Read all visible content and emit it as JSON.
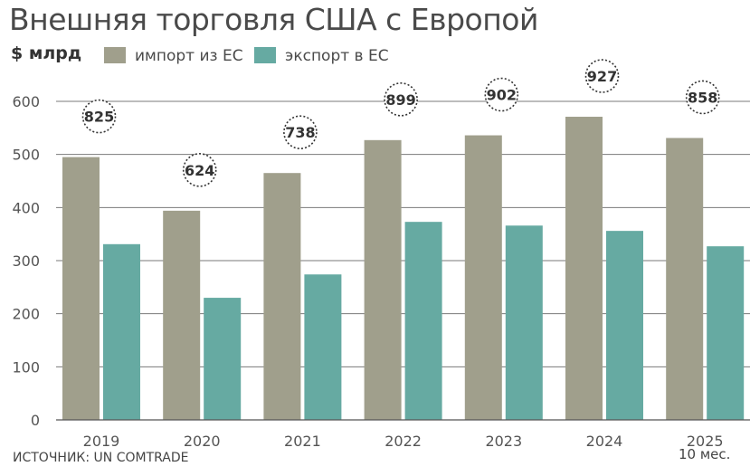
{
  "chart_data": {
    "type": "bar",
    "title": "Внешняя торговля США с Европой",
    "ylabel": "$ млрд",
    "ylim": [
      0,
      600
    ],
    "yticks": [
      "0",
      "100",
      "200",
      "300",
      "400",
      "500",
      "600"
    ],
    "grid": true,
    "categories": [
      "2019",
      "2020",
      "2021",
      "2022",
      "2023",
      "2024",
      "2025"
    ],
    "series": [
      {
        "name": "импорт из ЕС",
        "color": "#a09f8c",
        "values": [
          495,
          394,
          465,
          527,
          536,
          571,
          531
        ]
      },
      {
        "name": "экспорт в ЕС",
        "color": "#66aaa2",
        "values": [
          331,
          230,
          274,
          373,
          366,
          356,
          327
        ]
      }
    ],
    "totals": [
      "825",
      "624",
      "738",
      "899",
      "902",
      "927",
      "858"
    ],
    "note": "10 мес."
  },
  "source": "ИСТОЧНИК: UN COMTRADE"
}
